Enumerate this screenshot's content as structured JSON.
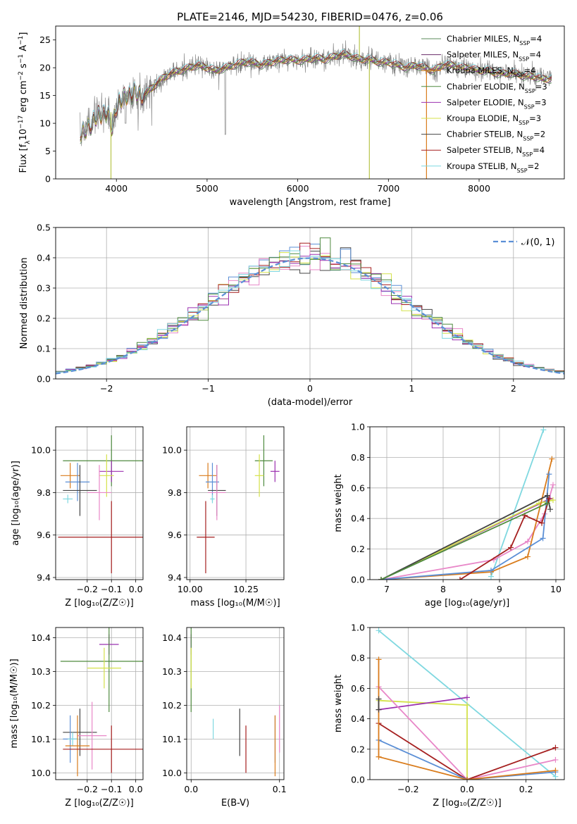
{
  "chart_data": [
    {
      "id": "spectrum",
      "type": "line",
      "title": "PLATE=2146, MJD=54230, FIBERID=0476, z=0.06",
      "xlabel": "wavelength [Angstrom, rest frame]",
      "ylabel": "Flux [f_λ 10^-17 erg cm^-2 s^-1 A^-1]",
      "xlim": [
        3330,
        8940
      ],
      "ylim": [
        0,
        27.5
      ],
      "xticks": [
        4000,
        5000,
        6000,
        7000,
        8000
      ],
      "yticks": [
        0,
        5,
        10,
        15,
        20,
        25
      ],
      "grid": false,
      "legend_position": "top-right",
      "spectrum_points": [
        [
          3600,
          8
        ],
        [
          3700,
          9.5
        ],
        [
          3800,
          11.5
        ],
        [
          3900,
          12
        ],
        [
          3950,
          9
        ],
        [
          4000,
          13
        ],
        [
          4100,
          15
        ],
        [
          4200,
          15.5
        ],
        [
          4300,
          15
        ],
        [
          4400,
          16.5
        ],
        [
          4500,
          18
        ],
        [
          4600,
          19
        ],
        [
          4700,
          19.5
        ],
        [
          4800,
          20
        ],
        [
          4900,
          20.5
        ],
        [
          5000,
          20
        ],
        [
          5100,
          19.5
        ],
        [
          5200,
          20
        ],
        [
          5300,
          20.5
        ],
        [
          5400,
          21
        ],
        [
          5500,
          21
        ],
        [
          5600,
          20.5
        ],
        [
          5700,
          21
        ],
        [
          5800,
          21.3
        ],
        [
          5900,
          21.5
        ],
        [
          6000,
          21.3
        ],
        [
          6100,
          21.5
        ],
        [
          6200,
          21.8
        ],
        [
          6300,
          21.5
        ],
        [
          6400,
          22
        ],
        [
          6500,
          22.5
        ],
        [
          6600,
          22
        ],
        [
          6700,
          21.5
        ],
        [
          6800,
          21.5
        ],
        [
          6900,
          21
        ],
        [
          7000,
          21
        ],
        [
          7100,
          20.5
        ],
        [
          7200,
          20
        ],
        [
          7300,
          20.5
        ],
        [
          7400,
          20
        ],
        [
          7500,
          19.5
        ],
        [
          7600,
          20.5
        ],
        [
          7700,
          20.5
        ],
        [
          7800,
          20
        ],
        [
          7900,
          20
        ],
        [
          8000,
          19.5
        ],
        [
          8100,
          19.5
        ],
        [
          8200,
          19
        ],
        [
          8300,
          19
        ],
        [
          8400,
          19
        ],
        [
          8500,
          18.5
        ],
        [
          8600,
          18.5
        ],
        [
          8700,
          18
        ],
        [
          8800,
          18
        ]
      ],
      "series": [
        {
          "label": "Chabrier MILES, N",
          "sub": "SSP",
          "suffix": "=4",
          "color": "#5a8a5a"
        },
        {
          "label": "Salpeter MILES, N",
          "sub": "SSP",
          "suffix": "=4",
          "color": "#6a2c6a"
        },
        {
          "label": "Kroupa MILES, N",
          "sub": "SSP",
          "suffix": "=4",
          "color": "#d97c1c"
        },
        {
          "label": "Chabrier ELODIE, N",
          "sub": "SSP",
          "suffix": "=3",
          "color": "#4f8a3f"
        },
        {
          "label": "Salpeter ELODIE, N",
          "sub": "SSP",
          "suffix": "=3",
          "color": "#9b30b0"
        },
        {
          "label": "Kroupa ELODIE, N",
          "sub": "SSP",
          "suffix": "=3",
          "color": "#d4e24a"
        },
        {
          "label": "Chabrier STELIB, N",
          "sub": "SSP",
          "suffix": "=2",
          "color": "#444444"
        },
        {
          "label": "Salpeter STELIB, N",
          "sub": "SSP",
          "suffix": "=4",
          "color": "#a51f1f"
        },
        {
          "label": "Kroupa STELIB, N",
          "sub": "SSP",
          "suffix": "=2",
          "color": "#7fd8e0"
        }
      ]
    },
    {
      "id": "residuals",
      "type": "histogram",
      "xlabel": "(data-model)/error",
      "ylabel": "Normed distribution",
      "xlim": [
        -2.5,
        2.5
      ],
      "ylim": [
        0,
        0.5
      ],
      "xticks": [
        -2,
        -1,
        0,
        1,
        2
      ],
      "yticks": [
        0.0,
        0.1,
        0.2,
        0.3,
        0.4,
        0.5
      ],
      "grid": true,
      "legend_position": "top-right",
      "legend_label": "𝒩(0, 1)",
      "normal_color": "#5b8fd6",
      "hist_colors": [
        "#444444",
        "#5b8fd6",
        "#e887c8",
        "#d4e24a",
        "#a51f1f",
        "#9b30b0",
        "#4f8a3f",
        "#7fd8e0"
      ]
    },
    {
      "id": "age-Z",
      "type": "errorbar",
      "xlabel": "Z [log₁₀(Z/Z☉)]",
      "ylabel": "age  [log₁₀(age/yr)]",
      "xlim": [
        -0.33,
        0.03
      ],
      "ylim": [
        9.39,
        10.11
      ],
      "xticks": [
        -0.2,
        -0.1,
        0.0
      ],
      "ylim_ticks": [
        9.4,
        9.6,
        9.8,
        10.0
      ],
      "points": [
        {
          "x": -0.1,
          "y": 9.95,
          "xerr": 0.2,
          "yerr": 0.12,
          "color": "#4f8a3f"
        },
        {
          "x": -0.1,
          "y": 9.9,
          "xerr": 0.05,
          "yerr": 0.05,
          "color": "#9b30b0"
        },
        {
          "x": -0.12,
          "y": 9.88,
          "xerr": 0.03,
          "yerr": 0.1,
          "color": "#d4e24a"
        },
        {
          "x": -0.27,
          "y": 9.88,
          "xerr": 0.04,
          "yerr": 0.06,
          "color": "#d97c1c"
        },
        {
          "x": -0.24,
          "y": 9.85,
          "xerr": 0.05,
          "yerr": 0.09,
          "color": "#5b8fd6"
        },
        {
          "x": -0.23,
          "y": 9.81,
          "xerr": 0.07,
          "yerr": 0.12,
          "color": "#444444"
        },
        {
          "x": -0.15,
          "y": 9.8,
          "xerr": 0.05,
          "yerr": 0.13,
          "color": "#e887c8"
        },
        {
          "x": -0.28,
          "y": 9.77,
          "xerr": 0.02,
          "yerr": 0.02,
          "color": "#7fd8e0"
        },
        {
          "x": -0.1,
          "y": 9.59,
          "xerr": 0.22,
          "yerr": 0.17,
          "color": "#a51f1f"
        }
      ]
    },
    {
      "id": "age-mass",
      "type": "errorbar",
      "xlabel": "mass [log₁₀(M/M☉)]",
      "ylabel": "",
      "xlim": [
        9.985,
        10.42
      ],
      "ylim": [
        9.39,
        10.11
      ],
      "xticks": [
        10.0,
        10.25
      ],
      "ylim_ticks": [
        9.4,
        9.6,
        9.8,
        10.0
      ],
      "points": [
        {
          "x": 10.33,
          "y": 9.95,
          "xerr": 0.04,
          "yerr": 0.12,
          "color": "#4f8a3f"
        },
        {
          "x": 10.38,
          "y": 9.9,
          "xerr": 0.02,
          "yerr": 0.05,
          "color": "#9b30b0"
        },
        {
          "x": 10.31,
          "y": 9.88,
          "xerr": 0.02,
          "yerr": 0.1,
          "color": "#d4e24a"
        },
        {
          "x": 10.08,
          "y": 9.88,
          "xerr": 0.04,
          "yerr": 0.06,
          "color": "#d97c1c"
        },
        {
          "x": 10.1,
          "y": 9.85,
          "xerr": 0.03,
          "yerr": 0.09,
          "color": "#5b8fd6"
        },
        {
          "x": 10.12,
          "y": 9.81,
          "xerr": 0.04,
          "yerr": 0.12,
          "color": "#444444"
        },
        {
          "x": 10.12,
          "y": 9.8,
          "xerr": 0.04,
          "yerr": 0.13,
          "color": "#e887c8"
        },
        {
          "x": 10.1,
          "y": 9.77,
          "xerr": 0.01,
          "yerr": 0.02,
          "color": "#7fd8e0"
        },
        {
          "x": 10.07,
          "y": 9.59,
          "xerr": 0.04,
          "yerr": 0.17,
          "color": "#a51f1f"
        }
      ]
    },
    {
      "id": "weight-age",
      "type": "line",
      "xlabel": "age  [log₁₀(age/yr)]",
      "ylabel": "mass weight",
      "xlim": [
        6.7,
        10.15
      ],
      "ylim": [
        0,
        1.0
      ],
      "xticks": [
        7,
        8,
        9,
        10
      ],
      "yticks": [
        0.0,
        0.2,
        0.4,
        0.6,
        0.8,
        1.0
      ],
      "grid": true,
      "series": [
        {
          "color": "#7fd8e0",
          "points": [
            [
              8.85,
              0.02
            ],
            [
              9.78,
              0.98
            ]
          ]
        },
        {
          "color": "#9b30b0",
          "points": [
            [
              6.9,
              0.0
            ],
            [
              9.9,
              0.53
            ]
          ]
        },
        {
          "color": "#d4e24a",
          "points": [
            [
              6.9,
              0.0
            ],
            [
              9.7,
              0.5
            ],
            [
              9.95,
              0.52
            ]
          ]
        },
        {
          "color": "#e887c8",
          "points": [
            [
              6.9,
              0.0
            ],
            [
              8.9,
              0.13
            ],
            [
              9.5,
              0.25
            ],
            [
              9.8,
              0.43
            ],
            [
              9.95,
              0.62
            ]
          ]
        },
        {
          "color": "#d97c1c",
          "points": [
            [
              6.9,
              0.0
            ],
            [
              8.85,
              0.05
            ],
            [
              9.5,
              0.15
            ],
            [
              9.93,
              0.79
            ]
          ]
        },
        {
          "color": "#5b8fd6",
          "points": [
            [
              6.9,
              0.0
            ],
            [
              8.85,
              0.06
            ],
            [
              9.77,
              0.27
            ],
            [
              9.88,
              0.69
            ]
          ]
        },
        {
          "color": "#444444",
          "points": [
            [
              6.9,
              0.0
            ],
            [
              9.85,
              0.55
            ],
            [
              9.9,
              0.46
            ]
          ]
        },
        {
          "color": "#a51f1f",
          "points": [
            [
              8.3,
              0.0
            ],
            [
              9.2,
              0.21
            ],
            [
              9.45,
              0.42
            ],
            [
              9.75,
              0.37
            ],
            [
              9.88,
              0.53
            ]
          ]
        },
        {
          "color": "#4f8a3f",
          "points": [
            [
              6.9,
              0.0
            ],
            [
              9.85,
              0.5
            ]
          ]
        }
      ]
    },
    {
      "id": "mass-Z",
      "type": "errorbar",
      "xlabel": "Z [log₁₀(Z/Z☉)]",
      "ylabel": "mass [log₁₀(M/M☉)]",
      "xlim": [
        -0.33,
        0.03
      ],
      "ylim": [
        9.98,
        10.43
      ],
      "xticks": [
        -0.2,
        -0.1,
        0.0
      ],
      "ylim_ticks": [
        10.0,
        10.1,
        10.2,
        10.3,
        10.4
      ],
      "points": [
        {
          "x": -0.11,
          "y": 10.38,
          "xerr": 0.04,
          "yerr": 0.03,
          "color": "#9b30b0"
        },
        {
          "x": -0.11,
          "y": 10.33,
          "xerr": 0.2,
          "yerr": 0.15,
          "color": "#4f8a3f"
        },
        {
          "x": -0.13,
          "y": 10.31,
          "xerr": 0.07,
          "yerr": 0.06,
          "color": "#d4e24a"
        },
        {
          "x": -0.23,
          "y": 10.12,
          "xerr": 0.07,
          "yerr": 0.07,
          "color": "#444444"
        },
        {
          "x": -0.18,
          "y": 10.11,
          "xerr": 0.06,
          "yerr": 0.1,
          "color": "#e887c8"
        },
        {
          "x": -0.27,
          "y": 10.1,
          "xerr": 0.03,
          "yerr": 0.07,
          "color": "#5b8fd6"
        },
        {
          "x": -0.26,
          "y": 10.1,
          "xerr": 0.02,
          "yerr": 0.02,
          "color": "#7fd8e0"
        },
        {
          "x": -0.24,
          "y": 10.08,
          "xerr": 0.05,
          "yerr": 0.09,
          "color": "#d97c1c"
        },
        {
          "x": -0.1,
          "y": 10.07,
          "xerr": 0.2,
          "yerr": 0.07,
          "color": "#a51f1f"
        }
      ]
    },
    {
      "id": "mass-EBV",
      "type": "errorbar",
      "xlabel": "E(B-V)",
      "ylabel": "",
      "xlim": [
        -0.005,
        0.105
      ],
      "ylim": [
        9.98,
        10.43
      ],
      "xticks": [
        0.0,
        0.1
      ],
      "ylim_ticks": [
        10.0,
        10.1,
        10.2,
        10.3,
        10.4
      ],
      "points": [
        {
          "x": 0.0,
          "y": 10.38,
          "xerr": 0,
          "yerr": 0.03,
          "color": "#9b30b0"
        },
        {
          "x": 0.0,
          "y": 10.33,
          "xerr": 0,
          "yerr": 0.15,
          "color": "#4f8a3f"
        },
        {
          "x": 0.0,
          "y": 10.31,
          "xerr": 0,
          "yerr": 0.06,
          "color": "#d4e24a"
        },
        {
          "x": 0.055,
          "y": 10.12,
          "xerr": 0,
          "yerr": 0.07,
          "color": "#444444"
        },
        {
          "x": 0.1,
          "y": 10.13,
          "xerr": 0,
          "yerr": 0.07,
          "color": "#e887c8"
        },
        {
          "x": 0.095,
          "y": 10.1,
          "xerr": 0,
          "yerr": 0.07,
          "color": "#5b8fd6"
        },
        {
          "x": 0.025,
          "y": 10.13,
          "xerr": 0,
          "yerr": 0.03,
          "color": "#7fd8e0"
        },
        {
          "x": 0.095,
          "y": 10.08,
          "xerr": 0,
          "yerr": 0.09,
          "color": "#d97c1c"
        },
        {
          "x": 0.062,
          "y": 10.07,
          "xerr": 0,
          "yerr": 0.07,
          "color": "#a51f1f"
        }
      ]
    },
    {
      "id": "weight-Z",
      "type": "line",
      "xlabel": "Z [log₁₀(Z/Z☉)]",
      "ylabel": "mass weight",
      "xlim": [
        -0.33,
        0.33
      ],
      "ylim": [
        0,
        1.0
      ],
      "xticks": [
        -0.2,
        0.0,
        0.2
      ],
      "yticks": [
        0.0,
        0.2,
        0.4,
        0.6,
        0.8,
        1.0
      ],
      "grid": true,
      "series": [
        {
          "color": "#7fd8e0",
          "points": [
            [
              -0.3,
              0.98
            ],
            [
              0.3,
              0.02
            ]
          ]
        },
        {
          "color": "#d4e24a",
          "points": [
            [
              -0.3,
              0.52
            ],
            [
              0.0,
              0.49
            ],
            [
              0.0,
              0.0
            ]
          ]
        },
        {
          "color": "#9b30b0",
          "points": [
            [
              -0.3,
              0.46
            ],
            [
              0.0,
              0.54
            ]
          ]
        },
        {
          "color": "#e887c8",
          "points": [
            [
              -0.3,
              0.61
            ],
            [
              0.0,
              0.0
            ],
            [
              0.3,
              0.13
            ]
          ]
        },
        {
          "color": "#a51f1f",
          "points": [
            [
              -0.3,
              0.37
            ],
            [
              0.0,
              0.0
            ],
            [
              0.3,
              0.21
            ]
          ]
        },
        {
          "color": "#5b8fd6",
          "points": [
            [
              -0.3,
              0.26
            ],
            [
              0.0,
              0.0
            ],
            [
              0.3,
              0.05
            ]
          ]
        },
        {
          "color": "#d97c1c",
          "points": [
            [
              -0.3,
              0.79
            ],
            [
              -0.3,
              0.15
            ],
            [
              0.0,
              0.0
            ],
            [
              0.3,
              0.06
            ]
          ]
        },
        {
          "color": "#444444",
          "points": [
            [
              -0.3,
              0.53
            ],
            [
              -0.3,
              0.46
            ]
          ]
        }
      ]
    }
  ]
}
